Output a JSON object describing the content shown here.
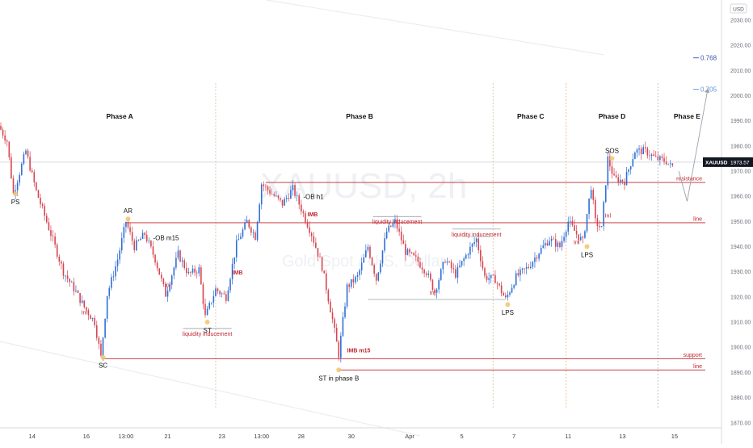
{
  "chart_data": {
    "type": "candlestick",
    "currency": "USD",
    "symbol": "XAUUSD",
    "watermark": {
      "title": "XAUUSD, 2h",
      "subtitle": "Gold Spot / U.S. Dollar"
    },
    "price_tag": {
      "label": "XAUUSD",
      "value": "1973.57",
      "price": 1973.57
    },
    "ylim": [
      1868,
      2038
    ],
    "y_ticks": [
      1870,
      1880,
      1890,
      1900,
      1910,
      1920,
      1930,
      1940,
      1950,
      1960,
      1970,
      1980,
      1990,
      2000,
      2010,
      2020,
      2030
    ],
    "x_ticks": [
      "14",
      "16",
      "13:00",
      "21",
      "23",
      "13:00",
      "28",
      "30",
      "Apr",
      "5",
      "7",
      "11",
      "13",
      "15"
    ],
    "x_tick_index": [
      15,
      41,
      60,
      80,
      106,
      125,
      144,
      168,
      196,
      221,
      246,
      272,
      298,
      323
    ],
    "phases": [
      {
        "label": "Phase A",
        "index": 57
      },
      {
        "label": "Phase B",
        "index": 172
      },
      {
        "label": "Phase C",
        "index": 254
      },
      {
        "label": "Phase D",
        "index": 293
      },
      {
        "label": "Phase E",
        "index": 329
      }
    ],
    "phase_dividers": [
      103,
      236,
      271,
      315
    ],
    "levels": [
      {
        "name": "resistance",
        "label": "resistance",
        "price": 1965.5
      },
      {
        "name": "line-upper",
        "label": "line",
        "price": 1949.5
      },
      {
        "name": "support",
        "label": "support",
        "price": 1895.5
      },
      {
        "name": "line-lower",
        "label": "line",
        "price": 1891
      }
    ],
    "fib_levels": [
      {
        "label": "0.768",
        "price": 2015,
        "color": "#3b55a8"
      },
      {
        "label": "0.705",
        "price": 2002.5,
        "color": "#5b8fd6"
      }
    ],
    "annotations": [
      {
        "label": "PS",
        "index": 7,
        "price": 1961
      },
      {
        "label": "SC",
        "index": 49,
        "price": 1896
      },
      {
        "label": "AR",
        "index": 61,
        "price": 1951
      },
      {
        "label": "ST",
        "index": 99,
        "price": 1910
      },
      {
        "label": "ST in phase B",
        "index": 162,
        "price": 1891
      },
      {
        "label": "LPS",
        "index": 243,
        "price": 1917
      },
      {
        "label": "LPS",
        "index": 281,
        "price": 1940
      },
      {
        "label": "SOS",
        "index": 293,
        "price": 1975
      }
    ],
    "red_annotations": [
      {
        "label": "Inl",
        "index": 40,
        "price": 1913
      },
      {
        "label": "Inl",
        "index": 80,
        "price": 1924
      },
      {
        "label": "Inl",
        "index": 207,
        "price": 1921
      },
      {
        "label": "Inl",
        "index": 276,
        "price": 1941
      },
      {
        "label": "Inl",
        "index": 291,
        "price": 1951.5
      },
      {
        "label": "IMB",
        "index": 111,
        "price": 1929
      },
      {
        "label": "IMB",
        "index": 147,
        "price": 1952
      },
      {
        "label": "IMB m15",
        "index": 166,
        "price": 1898
      },
      {
        "label": "liquidity inducement",
        "index": 99,
        "price": 1906.5
      },
      {
        "label": "liquidity inducement",
        "index": 190,
        "price": 1951
      },
      {
        "label": "liquidity inducement",
        "index": 228,
        "price": 1946
      }
    ],
    "black_annotations": [
      {
        "label": "-OB m15",
        "index": 73,
        "price": 1942.5
      },
      {
        "label": "-OB h1",
        "index": 145,
        "price": 1959
      }
    ],
    "anchors": [
      [
        0,
        1988
      ],
      [
        4,
        1982
      ],
      [
        7,
        1961
      ],
      [
        13,
        1978
      ],
      [
        18,
        1962
      ],
      [
        25,
        1945
      ],
      [
        31,
        1930
      ],
      [
        37,
        1922
      ],
      [
        41,
        1916
      ],
      [
        46,
        1910
      ],
      [
        49,
        1896
      ],
      [
        52,
        1921
      ],
      [
        57,
        1935
      ],
      [
        61,
        1950
      ],
      [
        65,
        1940
      ],
      [
        70,
        1945
      ],
      [
        75,
        1935
      ],
      [
        80,
        1921
      ],
      [
        86,
        1937
      ],
      [
        91,
        1929
      ],
      [
        96,
        1931
      ],
      [
        99,
        1912
      ],
      [
        104,
        1923
      ],
      [
        109,
        1920
      ],
      [
        114,
        1941
      ],
      [
        119,
        1950
      ],
      [
        123,
        1944
      ],
      [
        126,
        1965
      ],
      [
        131,
        1961
      ],
      [
        136,
        1957
      ],
      [
        141,
        1963
      ],
      [
        145,
        1955
      ],
      [
        150,
        1945
      ],
      [
        155,
        1932
      ],
      [
        160,
        1911
      ],
      [
        163,
        1897
      ],
      [
        167,
        1924
      ],
      [
        172,
        1928
      ],
      [
        177,
        1940
      ],
      [
        181,
        1927
      ],
      [
        186,
        1946
      ],
      [
        190,
        1950
      ],
      [
        195,
        1938
      ],
      [
        200,
        1935
      ],
      [
        205,
        1930
      ],
      [
        209,
        1922
      ],
      [
        214,
        1935
      ],
      [
        219,
        1929
      ],
      [
        225,
        1938
      ],
      [
        229,
        1943
      ],
      [
        233,
        1928
      ],
      [
        238,
        1927
      ],
      [
        243,
        1919
      ],
      [
        248,
        1928
      ],
      [
        254,
        1932
      ],
      [
        259,
        1938
      ],
      [
        264,
        1943
      ],
      [
        269,
        1940
      ],
      [
        273,
        1950
      ],
      [
        277,
        1945
      ],
      [
        280,
        1942
      ],
      [
        284,
        1964
      ],
      [
        286,
        1950
      ],
      [
        289,
        1947
      ],
      [
        292,
        1975
      ],
      [
        295,
        1967
      ],
      [
        300,
        1966
      ],
      [
        305,
        1978
      ],
      [
        310,
        1978
      ],
      [
        315,
        1975
      ],
      [
        320,
        1974
      ],
      [
        322,
        1972
      ]
    ],
    "last_index": 322,
    "total_index": 342,
    "projection": {
      "from_index": 325,
      "low_price": 1958,
      "to_index": 339,
      "to_price": 2003
    }
  }
}
